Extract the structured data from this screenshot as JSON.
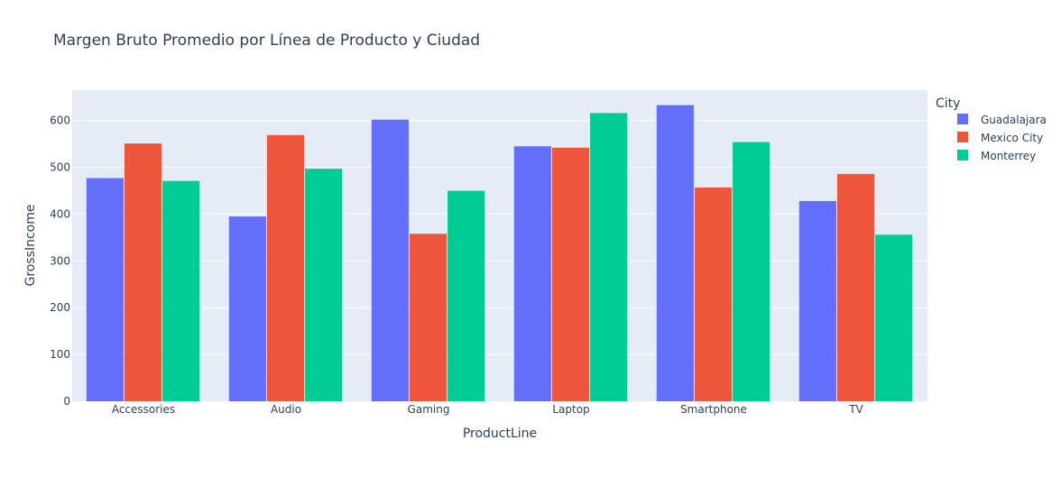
{
  "chart_data": {
    "type": "bar",
    "title": "Margen Bruto Promedio por Línea de Producto y Ciudad",
    "xlabel": "ProductLine",
    "ylabel": "GrossIncome",
    "categories": [
      "Accessories",
      "Audio",
      "Gaming",
      "Laptop",
      "Smartphone",
      "TV"
    ],
    "ylim": [
      0,
      665
    ],
    "yticks": [
      0,
      100,
      200,
      300,
      400,
      500,
      600
    ],
    "legend_title": "City",
    "legend_position": "right",
    "grid": true,
    "plot_background": "#e5ecf6",
    "series": [
      {
        "name": "Guadalajara",
        "color": "#636efa",
        "values": [
          477,
          395,
          602,
          545,
          633,
          428
        ]
      },
      {
        "name": "Mexico City",
        "color": "#ef553b",
        "values": [
          551,
          569,
          358,
          542,
          457,
          486
        ]
      },
      {
        "name": "Monterrey",
        "color": "#00cc96",
        "values": [
          471,
          497,
          450,
          616,
          554,
          356
        ]
      }
    ]
  }
}
